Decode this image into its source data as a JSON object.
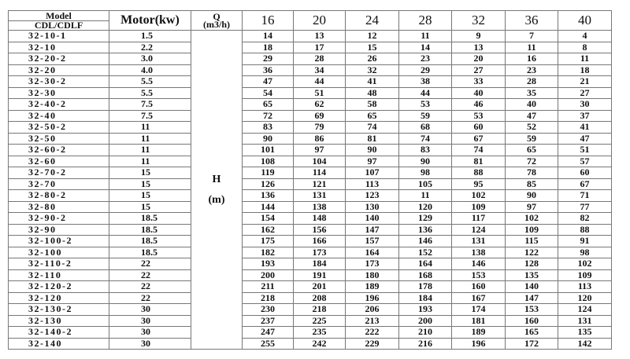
{
  "header": {
    "model_line1": "Model",
    "model_line2": "CDL/CDLF",
    "motor": "Motor(kw)",
    "q_symbol": "Q",
    "q_unit": "(m3/h)",
    "flows": [
      "16",
      "20",
      "24",
      "28",
      "32",
      "36",
      "40"
    ]
  },
  "head_label": {
    "symbol": "H",
    "unit": "(m)"
  },
  "rows": [
    {
      "model": "32-10-1",
      "motor": "1.5",
      "h": [
        "14",
        "13",
        "12",
        "11",
        "9",
        "7",
        "4"
      ]
    },
    {
      "model": "32-10",
      "motor": "2.2",
      "h": [
        "18",
        "17",
        "15",
        "14",
        "13",
        "11",
        "8"
      ]
    },
    {
      "model": "32-20-2",
      "motor": "3.0",
      "h": [
        "29",
        "28",
        "26",
        "23",
        "20",
        "16",
        "11"
      ]
    },
    {
      "model": "32-20",
      "motor": "4.0",
      "h": [
        "36",
        "34",
        "32",
        "29",
        "27",
        "23",
        "18"
      ]
    },
    {
      "model": "32-30-2",
      "motor": "5.5",
      "h": [
        "47",
        "44",
        "41",
        "38",
        "33",
        "28",
        "21"
      ]
    },
    {
      "model": "32-30",
      "motor": "5.5",
      "h": [
        "54",
        "51",
        "48",
        "44",
        "40",
        "35",
        "27"
      ]
    },
    {
      "model": "32-40-2",
      "motor": "7.5",
      "h": [
        "65",
        "62",
        "58",
        "53",
        "46",
        "40",
        "30"
      ]
    },
    {
      "model": "32-40",
      "motor": "7.5",
      "h": [
        "72",
        "69",
        "65",
        "59",
        "53",
        "47",
        "37"
      ]
    },
    {
      "model": "32-50-2",
      "motor": "11",
      "h": [
        "83",
        "79",
        "74",
        "68",
        "60",
        "52",
        "41"
      ]
    },
    {
      "model": "32-50",
      "motor": "11",
      "h": [
        "90",
        "86",
        "81",
        "74",
        "67",
        "59",
        "47"
      ]
    },
    {
      "model": "32-60-2",
      "motor": "11",
      "h": [
        "101",
        "97",
        "90",
        "83",
        "74",
        "65",
        "51"
      ]
    },
    {
      "model": "32-60",
      "motor": "11",
      "h": [
        "108",
        "104",
        "97",
        "90",
        "81",
        "72",
        "57"
      ]
    },
    {
      "model": "32-70-2",
      "motor": "15",
      "h": [
        "119",
        "114",
        "107",
        "98",
        "88",
        "78",
        "60"
      ]
    },
    {
      "model": "32-70",
      "motor": "15",
      "h": [
        "126",
        "121",
        "113",
        "105",
        "95",
        "85",
        "67"
      ]
    },
    {
      "model": "32-80-2",
      "motor": "15",
      "h": [
        "136",
        "131",
        "123",
        "11",
        "102",
        "90",
        "71"
      ]
    },
    {
      "model": "32-80",
      "motor": "15",
      "h": [
        "144",
        "138",
        "130",
        "120",
        "109",
        "97",
        "77"
      ]
    },
    {
      "model": "32-90-2",
      "motor": "18.5",
      "h": [
        "154",
        "148",
        "140",
        "129",
        "117",
        "102",
        "82"
      ]
    },
    {
      "model": "32-90",
      "motor": "18.5",
      "h": [
        "162",
        "156",
        "147",
        "136",
        "124",
        "109",
        "88"
      ]
    },
    {
      "model": "32-100-2",
      "motor": "18.5",
      "h": [
        "175",
        "166",
        "157",
        "146",
        "131",
        "115",
        "91"
      ]
    },
    {
      "model": "32-100",
      "motor": "18.5",
      "h": [
        "182",
        "173",
        "164",
        "152",
        "138",
        "122",
        "98"
      ]
    },
    {
      "model": "32-110-2",
      "motor": "22",
      "h": [
        "193",
        "184",
        "173",
        "164",
        "146",
        "128",
        "102"
      ]
    },
    {
      "model": "32-110",
      "motor": "22",
      "h": [
        "200",
        "191",
        "180",
        "168",
        "153",
        "135",
        "109"
      ]
    },
    {
      "model": "32-120-2",
      "motor": "22",
      "h": [
        "211",
        "201",
        "189",
        "178",
        "160",
        "140",
        "113"
      ]
    },
    {
      "model": "32-120",
      "motor": "22",
      "h": [
        "218",
        "208",
        "196",
        "184",
        "167",
        "147",
        "120"
      ]
    },
    {
      "model": "32-130-2",
      "motor": "30",
      "h": [
        "230",
        "218",
        "206",
        "193",
        "174",
        "153",
        "124"
      ]
    },
    {
      "model": "32-130",
      "motor": "30",
      "h": [
        "237",
        "225",
        "213",
        "200",
        "181",
        "160",
        "131"
      ]
    },
    {
      "model": "32-140-2",
      "motor": "30",
      "h": [
        "247",
        "235",
        "222",
        "210",
        "189",
        "165",
        "135"
      ]
    },
    {
      "model": "32-140",
      "motor": "30",
      "h": [
        "255",
        "242",
        "229",
        "216",
        "196",
        "172",
        "142"
      ]
    }
  ]
}
